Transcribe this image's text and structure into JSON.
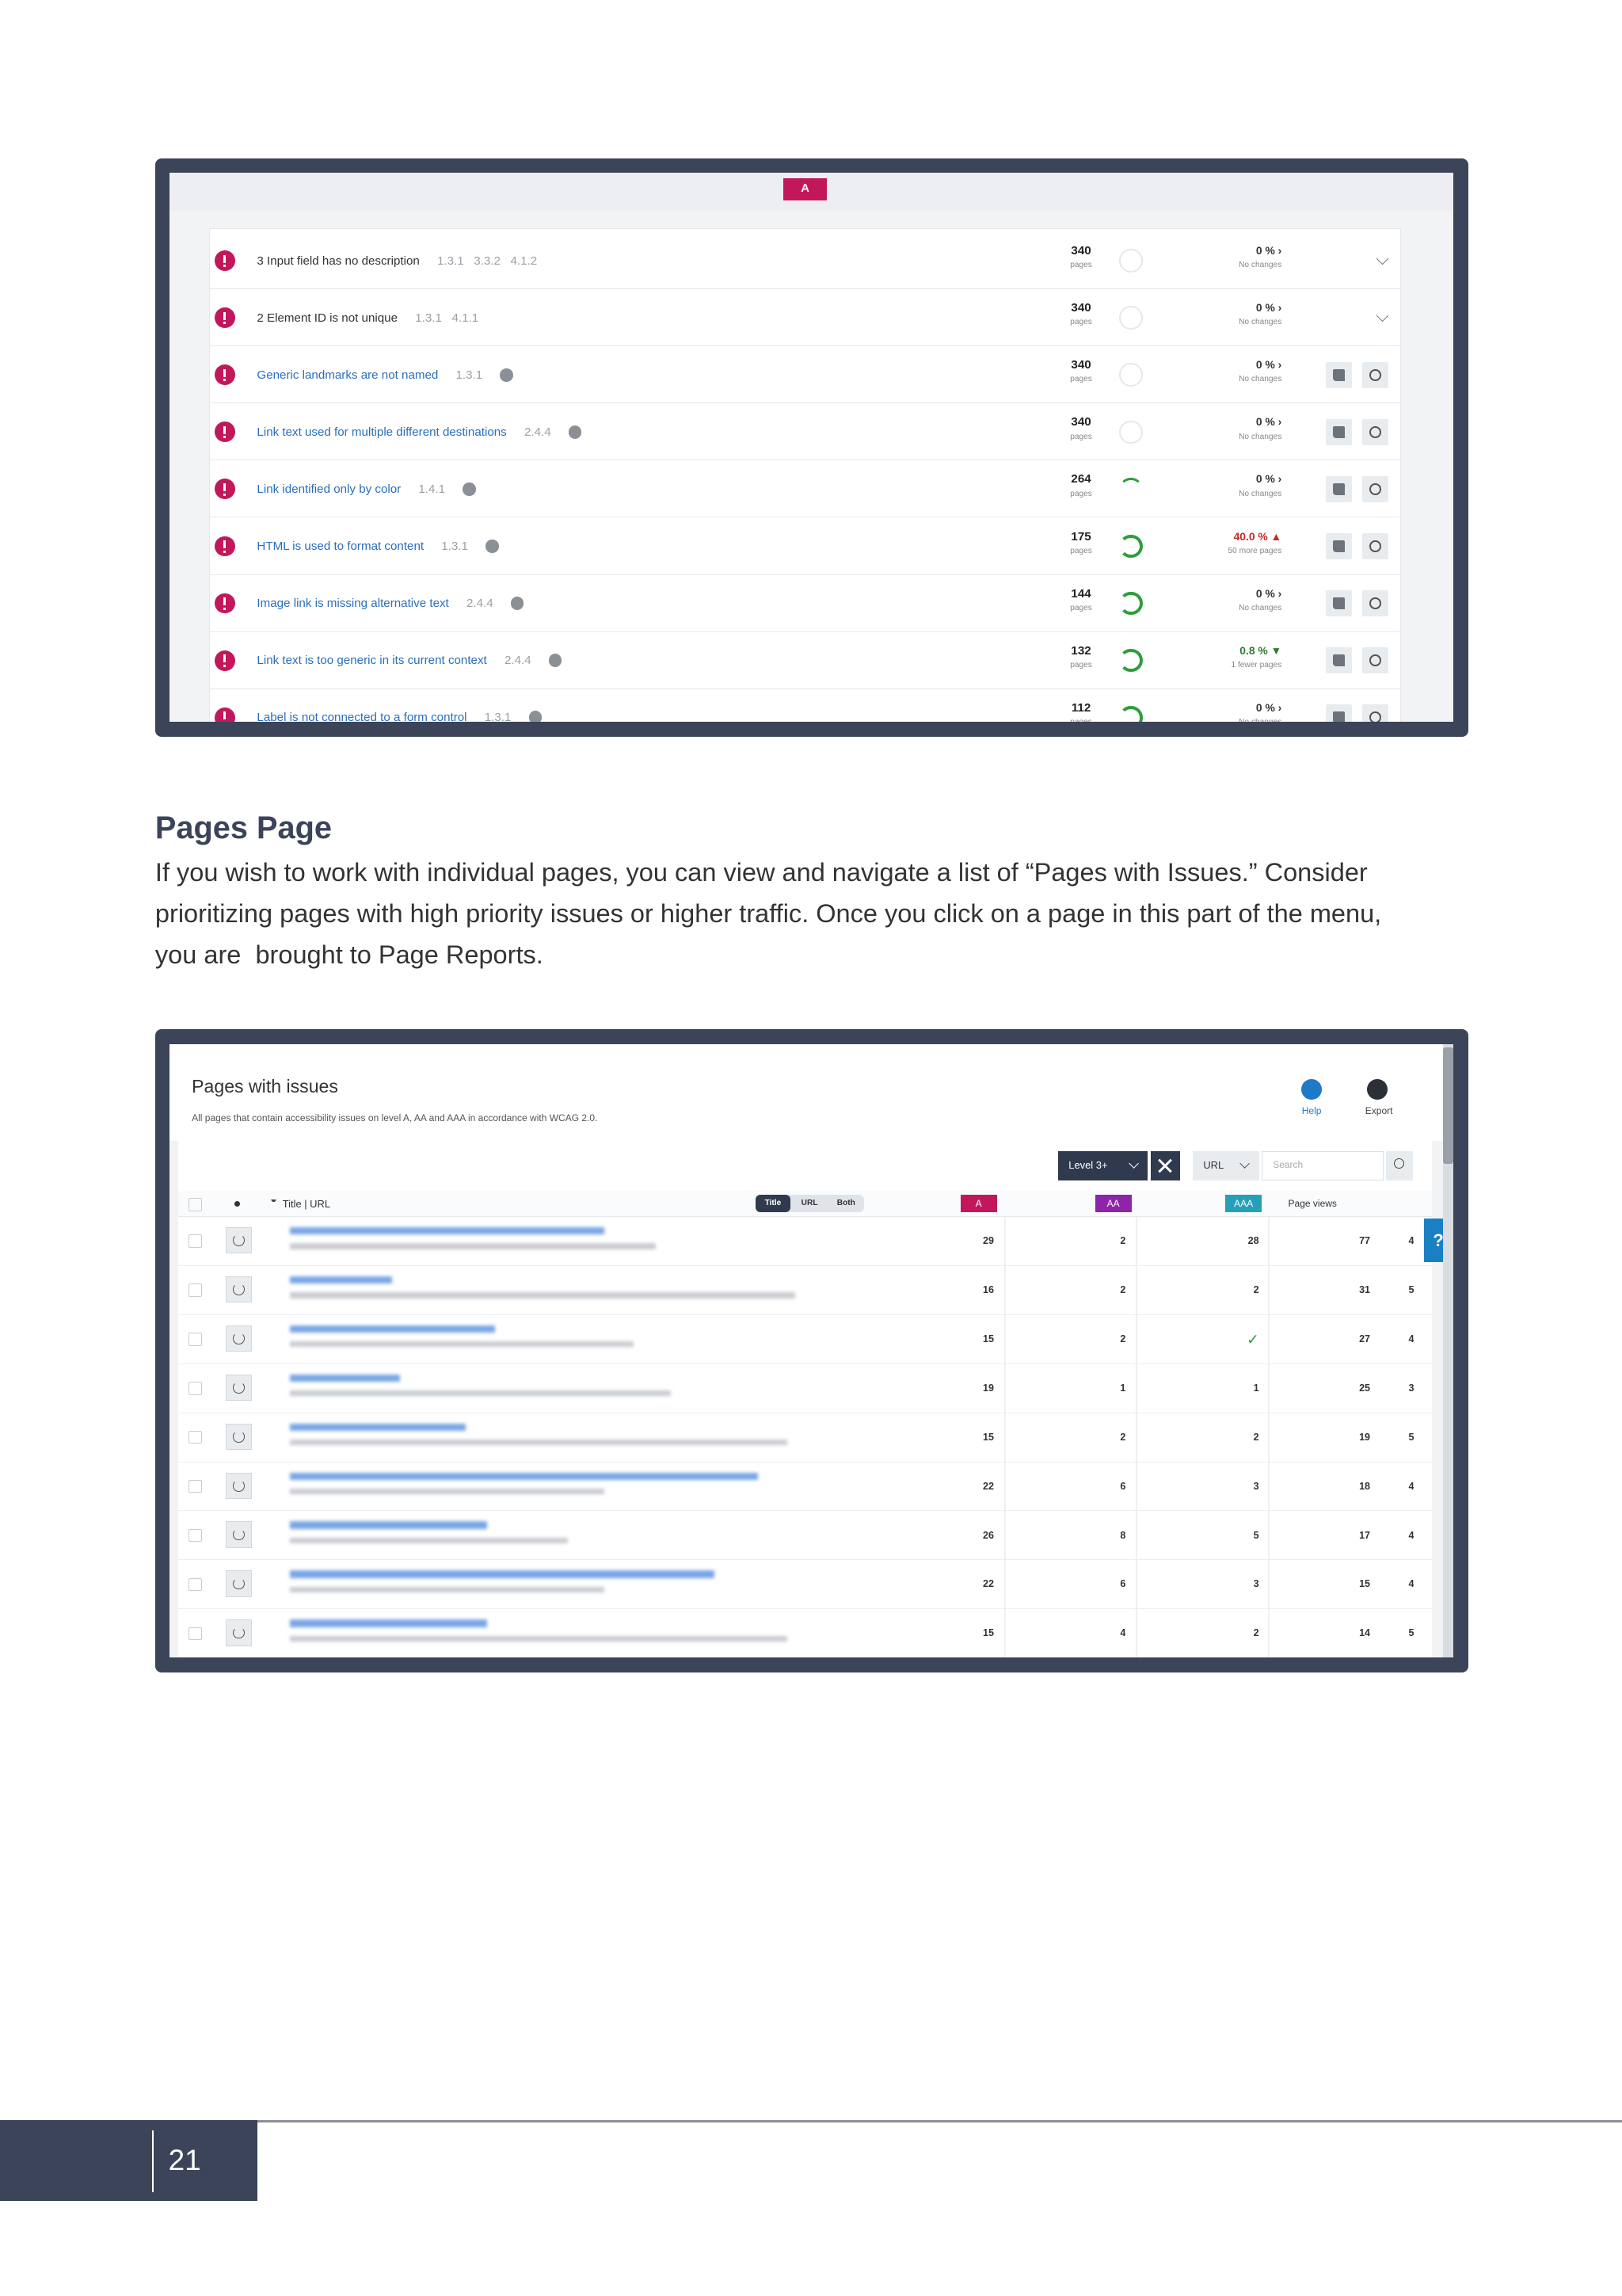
{
  "top_screenshot": {
    "level": "A",
    "rows": [
      {
        "title": "3 Input field has no description",
        "criteria": "1.3.1   3.3.2   4.1.2",
        "pages": "340",
        "pages_unit": "pages",
        "change": "0 % ›",
        "change_note": "No changes",
        "change_color": "#333333"
      },
      {
        "title": "2 Element ID is not unique",
        "criteria": "1.3.1   4.1.1",
        "pages": "340",
        "pages_unit": "pages",
        "change": "0 % ›",
        "change_note": "No changes",
        "change_color": "#333333"
      },
      {
        "title": "Generic landmarks are not named",
        "criteria": "1.3.1",
        "pages": "340",
        "pages_unit": "pages",
        "change": "0 % ›",
        "change_note": "No changes",
        "change_color": "#333333"
      },
      {
        "title": "Link text used for multiple different destinations",
        "criteria": "2.4.4",
        "pages": "340",
        "pages_unit": "pages",
        "change": "0 % ›",
        "change_note": "No changes",
        "change_color": "#333333"
      },
      {
        "title": "Link identified only by color",
        "criteria": "1.4.1",
        "pages": "264",
        "pages_unit": "pages",
        "change": "0 % ›",
        "change_note": "No changes",
        "change_color": "#333333"
      },
      {
        "title": "HTML is used to format content",
        "criteria": "1.3.1",
        "pages": "175",
        "pages_unit": "pages",
        "change": "40.0 % ▲",
        "change_note": "50 more pages",
        "change_color": "#c62828"
      },
      {
        "title": "Image link is missing alternative text",
        "criteria": "2.4.4",
        "pages": "144",
        "pages_unit": "pages",
        "change": "0 % ›",
        "change_note": "No changes",
        "change_color": "#333333"
      },
      {
        "title": "Link text is too generic in its current context",
        "criteria": "2.4.4",
        "pages": "132",
        "pages_unit": "pages",
        "change": "0.8 % ▼",
        "change_note": "1 fewer pages",
        "change_color": "#2e7d32"
      },
      {
        "title": "Label is not connected to a form control",
        "criteria": "1.3.1",
        "pages": "112",
        "pages_unit": "pages",
        "change": "0 % ›",
        "change_note": "No changes",
        "change_color": "#333333"
      }
    ]
  },
  "section": {
    "heading": "Pages Page",
    "paragraph_lines": [
      "If you wish to work with individual pages, you can view and navigate a list of “Pages with Issues.” Consider",
      "prioritizing pages with high priority issues or higher traffic. Once you click on a page in this part of the menu,",
      "you are  brought to Page Reports."
    ]
  },
  "bottom_screenshot": {
    "title": "Pages with issues",
    "subtitle": "All pages that contain accessibility issues on level A, AA and AAA in accordance with WCAG 2.0.",
    "help": "Help",
    "export": "Export",
    "level_filter": "Level 3+",
    "url_dropdown": "URL",
    "search_placeholder": "Search",
    "column_title_url": "Title | URL",
    "toggle": [
      "Title",
      "URL",
      "Both"
    ],
    "levels": [
      "A",
      "AA",
      "AAA"
    ],
    "page_views": "Page views",
    "help_tab": "?",
    "rows": [
      [
        29,
        2,
        28,
        77,
        4
      ],
      [
        16,
        2,
        2,
        31,
        5
      ],
      [
        15,
        2,
        "✓",
        27,
        4
      ],
      [
        19,
        1,
        1,
        25,
        3
      ],
      [
        15,
        2,
        2,
        19,
        5
      ],
      [
        22,
        6,
        3,
        18,
        4
      ],
      [
        26,
        8,
        5,
        17,
        4
      ],
      [
        22,
        6,
        3,
        15,
        4
      ],
      [
        15,
        4,
        2,
        14,
        5
      ]
    ]
  },
  "footer": {
    "page_number": "21"
  }
}
